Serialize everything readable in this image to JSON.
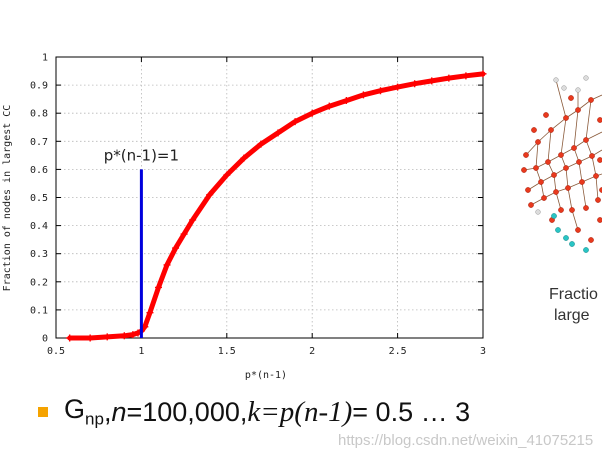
{
  "chart_data": {
    "type": "line",
    "xlabel": "p*(n-1)",
    "ylabel": "Fraction of nodes in largest CC",
    "xlim": [
      0.5,
      3
    ],
    "ylim": [
      0,
      1
    ],
    "xticks": [
      "0.5",
      "1",
      "1.5",
      "2",
      "2.5",
      "3"
    ],
    "yticks": [
      "0",
      "0.1",
      "0.2",
      "0.3",
      "0.4",
      "0.5",
      "0.6",
      "0.7",
      "0.8",
      "0.9",
      "1"
    ],
    "grid": true,
    "series": [
      {
        "color": "#ff0000",
        "x": [
          0.58,
          0.7,
          0.8,
          0.9,
          0.95,
          0.98,
          1.0,
          1.02,
          1.05,
          1.1,
          1.15,
          1.2,
          1.25,
          1.3,
          1.4,
          1.5,
          1.6,
          1.7,
          1.8,
          1.9,
          2.0,
          2.1,
          2.2,
          2.3,
          2.4,
          2.5,
          2.6,
          2.7,
          2.8,
          2.9,
          3.0
        ],
        "y": [
          0.0,
          0.0,
          0.004,
          0.008,
          0.012,
          0.018,
          0.025,
          0.04,
          0.09,
          0.18,
          0.26,
          0.32,
          0.37,
          0.42,
          0.51,
          0.58,
          0.64,
          0.69,
          0.73,
          0.77,
          0.8,
          0.825,
          0.845,
          0.865,
          0.88,
          0.893,
          0.905,
          0.915,
          0.925,
          0.933,
          0.94
        ]
      }
    ],
    "vertical_marker": {
      "x": 1,
      "y_top": 0.6,
      "color": "#0000dd",
      "label": "p*(n-1)=1"
    }
  },
  "illustration": {
    "name": "network-graph-thumbnail",
    "node_color": "#e8391d",
    "edge_color": "#8a5a3a",
    "highlight_node_color": "#29c4c4"
  },
  "caption": {
    "line1": "Fractio",
    "line2": "large"
  },
  "bullet": {
    "color": "#f5a300",
    "g": "G",
    "g_sub": "np",
    "sep1": ", ",
    "n_var": "n",
    "n_value": "=100,000, ",
    "k_expr": "k=p(n-1)",
    "range": " = 0.5 … 3"
  },
  "watermark": "https://blog.csdn.net/weixin_41075215"
}
